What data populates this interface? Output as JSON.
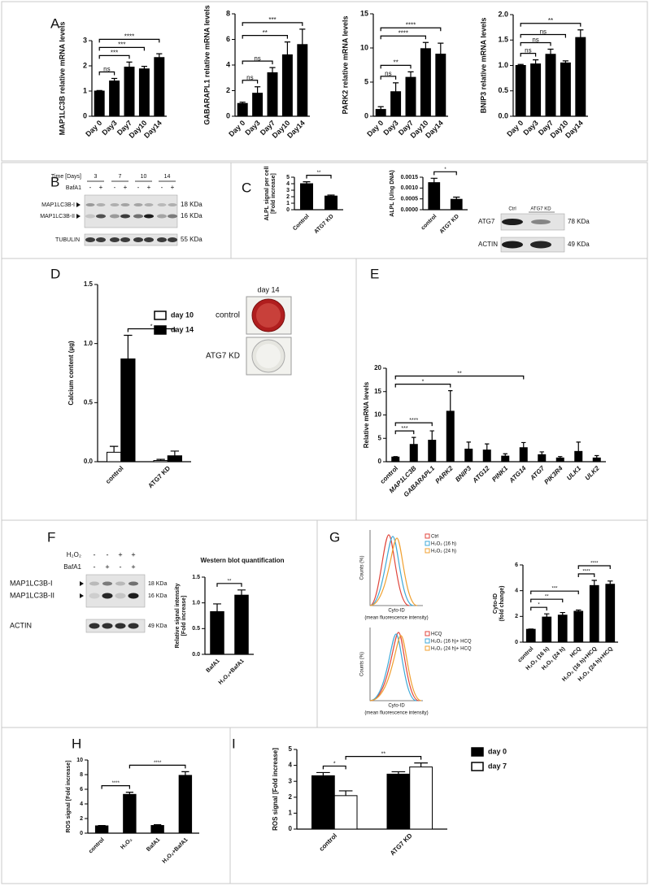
{
  "panel_labels": [
    "A",
    "B",
    "C",
    "D",
    "E",
    "F",
    "G",
    "H",
    "I"
  ],
  "chart_data": [
    {
      "type": "bar",
      "ylabel": "MAP1LC3B relative mRNA levels",
      "categories": [
        "Day 0",
        "Day3",
        "Day7",
        "Day10",
        "Day14"
      ],
      "values": [
        1,
        1.4,
        1.95,
        1.88,
        2.33
      ],
      "errors": [
        0.02,
        0.1,
        0.2,
        0.1,
        0.15
      ],
      "color": "#000000",
      "ylim": [
        0,
        3
      ],
      "yticks": [
        0,
        1,
        2,
        3
      ],
      "brackets": [
        {
          "between": [
            "Day 0",
            "Day3"
          ],
          "label": "ns"
        },
        {
          "between": [
            "Day 0",
            "Day7"
          ],
          "label": "***"
        },
        {
          "between": [
            "Day 0",
            "Day10"
          ],
          "label": "***"
        },
        {
          "between": [
            "Day 0",
            "Day14"
          ],
          "label": "****"
        }
      ]
    },
    {
      "type": "bar",
      "ylabel": "GABARAPL1 relative mRNA levels",
      "categories": [
        "Day 0",
        "Day3",
        "Day7",
        "Day10",
        "Day14"
      ],
      "values": [
        1,
        1.8,
        3.4,
        4.8,
        5.6
      ],
      "errors": [
        0.1,
        0.5,
        0.4,
        1,
        1.2
      ],
      "color": "#000000",
      "ylim": [
        0,
        8
      ],
      "yticks": [
        0,
        2,
        4,
        6,
        8
      ],
      "brackets": [
        {
          "between": [
            "Day 0",
            "Day3"
          ],
          "label": "ns"
        },
        {
          "between": [
            "Day 0",
            "Day7"
          ],
          "label": "ns"
        },
        {
          "between": [
            "Day 0",
            "Day10"
          ],
          "label": "**"
        },
        {
          "between": [
            "Day 0",
            "Day14"
          ],
          "label": "***"
        }
      ]
    },
    {
      "type": "bar",
      "ylabel": "PARK2 relative mRNA levels",
      "categories": [
        "Day 0",
        "Day3",
        "Day7",
        "Day10",
        "Day14"
      ],
      "values": [
        1,
        3.6,
        5.7,
        9.9,
        9.1
      ],
      "errors": [
        0.4,
        1.3,
        0.8,
        0.9,
        1.6
      ],
      "color": "#000000",
      "ylim": [
        0,
        15
      ],
      "yticks": [
        0,
        5,
        10,
        15
      ],
      "brackets": [
        {
          "between": [
            "Day 0",
            "Day3"
          ],
          "label": "ns"
        },
        {
          "between": [
            "Day 0",
            "Day7"
          ],
          "label": "**"
        },
        {
          "between": [
            "Day 0",
            "Day10"
          ],
          "label": "****"
        },
        {
          "between": [
            "Day 0",
            "Day14"
          ],
          "label": "****"
        }
      ]
    },
    {
      "type": "bar",
      "ylabel": "BNIP3 relative mRNA levels",
      "categories": [
        "Day 0",
        "Day3",
        "Day7",
        "Day10",
        "Day14"
      ],
      "values": [
        1,
        1.03,
        1.22,
        1.05,
        1.55
      ],
      "errors": [
        0.02,
        0.08,
        0.1,
        0.04,
        0.15
      ],
      "color": "#000000",
      "ylim": [
        0,
        2
      ],
      "yticks": [
        {
          "value": 0,
          "label": "0.0"
        },
        0.5,
        {
          "value": 1,
          "label": "1.0"
        },
        1.5,
        {
          "value": 2,
          "label": "2.0"
        }
      ],
      "brackets": [
        {
          "between": [
            "Day 0",
            "Day3"
          ],
          "label": "ns"
        },
        {
          "between": [
            "Day 0",
            "Day7"
          ],
          "label": "ns"
        },
        {
          "between": [
            "Day 0",
            "Day10"
          ],
          "label": "ns"
        },
        {
          "between": [
            "Day 0",
            "Day14"
          ],
          "label": "**"
        }
      ]
    },
    {
      "type": "bar",
      "ylabel": [
        "ALPL signal per cell",
        "[Fold increase]"
      ],
      "categories": [
        "Control",
        "ATG7 KD"
      ],
      "values": [
        4,
        2.1
      ],
      "errors": [
        0.3,
        0.15
      ],
      "color": "#000000",
      "ylim": [
        0,
        5
      ],
      "yticks": [
        0,
        1,
        2,
        3,
        4,
        5
      ],
      "brackets": [
        {
          "between": [
            "Control",
            "ATG7 KD"
          ],
          "label": "**"
        }
      ]
    },
    {
      "type": "bar",
      "ylabel": "ALPL (U/ng DNA)",
      "categories": [
        "control",
        "ATG7 KD"
      ],
      "values": [
        0.00125,
        0.00048
      ],
      "errors": [
        0.0002,
        0.0001
      ],
      "color": "#000000",
      "ylim": [
        0,
        0.0015
      ],
      "yticks": [
        {
          "value": 0,
          "label": "0.0000"
        },
        0.0005,
        {
          "value": 0.001,
          "label": "0.0010"
        },
        0.0015
      ],
      "brackets": [
        {
          "between": [
            "control",
            "ATG7 KD"
          ],
          "label": "*"
        }
      ]
    },
    {
      "type": "bar",
      "ylabel": "Calcium content (µg)",
      "categories": [
        "control",
        "ATG7 KD"
      ],
      "series": [
        {
          "name": "day 10",
          "color": "#ffffff",
          "values": [
            0.08,
            0.01
          ],
          "errors": [
            0.05,
            0.01
          ]
        },
        {
          "name": "day 14",
          "color": "#000000",
          "values": [
            0.87,
            0.05
          ],
          "errors": [
            0.2,
            0.04
          ]
        }
      ],
      "ylim": [
        0,
        1.5
      ],
      "yticks": [
        {
          "value": 0,
          "label": "0.0"
        },
        0.5,
        {
          "value": 1,
          "label": "1.0"
        },
        1.5
      ],
      "brackets": [
        {
          "between": [
            {
              "series": "day 14",
              "category": "control"
            },
            {
              "series": "day 14",
              "category": "ATG7 KD"
            }
          ],
          "label": "*"
        }
      ]
    },
    {
      "type": "bar",
      "ylabel": "Relative mRNA levels",
      "categories": [
        "control",
        "MAP1LC3B",
        "GABARAPL1",
        "PARK2",
        "BNIP3",
        "ATG12",
        "PINK1",
        "ATG14",
        "ATG7",
        "PIK3R4",
        "ULK1",
        "ULK2"
      ],
      "values": [
        1,
        3.7,
        4.6,
        10.8,
        2.7,
        2.5,
        1.2,
        3,
        1.5,
        0.8,
        2.2,
        0.8
      ],
      "errors": [
        0.1,
        1.5,
        2,
        4.4,
        1.5,
        1.3,
        0.5,
        1.1,
        0.6,
        0.3,
        2,
        0.5
      ],
      "color": "#000000",
      "ylim": [
        0,
        20
      ],
      "yticks": [
        0,
        5,
        10,
        15,
        20
      ],
      "brackets": [
        {
          "between": [
            "control",
            "MAP1LC3B"
          ],
          "label": "***"
        },
        {
          "between": [
            "control",
            "GABARAPL1"
          ],
          "label": "****"
        },
        {
          "between": [
            "control",
            "PARK2"
          ],
          "label": "*"
        },
        {
          "between": [
            "control",
            "ATG14"
          ],
          "label": "**"
        }
      ]
    },
    {
      "type": "bar",
      "title": "Western blot quantification",
      "ylabel": [
        "Relative signal intensity",
        "[Fold increase]"
      ],
      "categories": [
        "BafA1",
        "H₂O₂+BafA1"
      ],
      "values": [
        0.83,
        1.15
      ],
      "errors": [
        0.15,
        0.1
      ],
      "color": "#000000",
      "ylim": [
        0,
        1.5
      ],
      "yticks": [
        {
          "value": 0,
          "label": "0.0"
        },
        0.5,
        {
          "value": 1,
          "label": "1.0"
        },
        1.5
      ],
      "brackets": [
        {
          "between": [
            "BafA1",
            "H₂O₂+BafA1"
          ],
          "label": "**"
        }
      ]
    },
    {
      "type": "bar",
      "ylabel": [
        "Cyto-ID",
        "(fold change)"
      ],
      "categories": [
        "control",
        "H₂O₂ (16 h)",
        "H₂O₂ (24 h)",
        "HCQ",
        "H₂O₂ (16 h)+HCQ",
        "H₂O₂ (24 h)+HCQ"
      ],
      "values": [
        1,
        1.95,
        2.1,
        2.4,
        4.4,
        4.5
      ],
      "errors": [
        0.02,
        0.25,
        0.2,
        0.1,
        0.4,
        0.25
      ],
      "color": "#000000",
      "ylim": [
        0,
        6
      ],
      "yticks": [
        0,
        2,
        4,
        6
      ],
      "brackets": [
        {
          "between": [
            "control",
            "H₂O₂ (16 h)"
          ],
          "label": "*"
        },
        {
          "between": [
            "control",
            "H₂O₂ (24 h)"
          ],
          "label": "**"
        },
        {
          "between": [
            "control",
            "HCQ"
          ],
          "label": "***"
        },
        {
          "between": [
            "HCQ",
            "H₂O₂ (16 h)+HCQ"
          ],
          "label": "****"
        },
        {
          "between": [
            "HCQ",
            "H₂O₂ (24 h)+HCQ"
          ],
          "label": "****"
        }
      ]
    },
    {
      "type": "bar",
      "ylabel": "ROS signal [Fold increase]",
      "categories": [
        "control",
        "H₂O₂",
        "BafA1",
        "H₂O₂+BafA1"
      ],
      "values": [
        1,
        5.3,
        1.05,
        7.9
      ],
      "errors": [
        0.05,
        0.3,
        0.1,
        0.5
      ],
      "color": "#000000",
      "ylim": [
        0,
        10
      ],
      "yticks": [
        0,
        2,
        4,
        6,
        8,
        10
      ],
      "brackets": [
        {
          "between": [
            "control",
            "H₂O₂"
          ],
          "label": "****"
        },
        {
          "between": [
            "H₂O₂",
            "H₂O₂+BafA1"
          ],
          "label": "****"
        }
      ]
    },
    {
      "type": "bar",
      "ylabel": "ROS signal [Fold increase]",
      "categories": [
        "control",
        "ATG7 KD"
      ],
      "series": [
        {
          "name": "day 0",
          "color": "#000000",
          "values": [
            3.35,
            3.45
          ],
          "errors": [
            0.2,
            0.15
          ]
        },
        {
          "name": "day 7",
          "color": "#ffffff",
          "values": [
            2.1,
            3.9
          ],
          "errors": [
            0.3,
            0.25
          ]
        }
      ],
      "ylim": [
        0,
        5
      ],
      "yticks": [
        0,
        1,
        2,
        3,
        4,
        5
      ],
      "brackets": [
        {
          "between": [
            {
              "series": "day 0",
              "category": "control"
            },
            {
              "series": "day 7",
              "category": "control"
            }
          ],
          "label": "*"
        },
        {
          "between": [
            {
              "series": "day 7",
              "category": "control"
            },
            {
              "series": "day 7",
              "category": "ATG7 KD"
            }
          ],
          "label": "**"
        }
      ]
    }
  ],
  "blot_B": {
    "time_label": "Time [Days]",
    "days": [
      "3",
      "7",
      "10",
      "14"
    ],
    "treatment": "BafA1",
    "signs": [
      "-",
      "+",
      "-",
      "+",
      "-",
      "+",
      "-",
      "+"
    ],
    "bands": [
      {
        "name": "MAP1LC3B-I",
        "size": "18 KDa"
      },
      {
        "name": "MAP1LC3B-II",
        "size": "16 KDa"
      },
      {
        "name": "TUBULIN",
        "size": "55 KDa"
      }
    ]
  },
  "blot_C": {
    "lanes": [
      "Ctrl",
      "ATG7 KD"
    ],
    "bands": [
      {
        "name": "ATG7",
        "size": "78 KDa"
      },
      {
        "name": "ACTIN",
        "size": "49 KDa"
      }
    ]
  },
  "image_D": {
    "title": "day 14",
    "labels": [
      "control",
      "ATG7 KD"
    ]
  },
  "blot_F": {
    "rows": [
      {
        "name": "H₂O₂",
        "signs": [
          "-",
          "-",
          "+",
          "+"
        ]
      },
      {
        "name": "BafA1",
        "signs": [
          "-",
          "+",
          "-",
          "+"
        ]
      }
    ],
    "bands": [
      {
        "name": "MAP1LC3B-I",
        "size": "18 KDa"
      },
      {
        "name": "MAP1LC3B-II",
        "size": "16 KDa"
      },
      {
        "name": "ACTIN",
        "size": "49 KDa"
      }
    ]
  },
  "histograms_G": [
    {
      "ylabel": "Counts (%)",
      "xlabel": "Cyto-ID",
      "xlabel2": "(mean fluorescence intensity)",
      "legend": [
        {
          "name": "Ctrl",
          "color": "#e0463c"
        },
        {
          "name": "H₂O₂ (16 h)",
          "color": "#3fa9d8"
        },
        {
          "name": "H₂O₂ (24 h)",
          "color": "#f0a030"
        }
      ]
    },
    {
      "ylabel": "Counts (%)",
      "xlabel": "Cyto-ID",
      "xlabel2": "(mean fluorescence intensity)",
      "legend": [
        {
          "name": "HCQ",
          "color": "#e0463c"
        },
        {
          "name": "H₂O₂ (16 h)+ HCQ",
          "color": "#3fa9d8"
        },
        {
          "name": "H₂O₂ (24 h)+ HCQ",
          "color": "#f0a030"
        }
      ]
    }
  ]
}
